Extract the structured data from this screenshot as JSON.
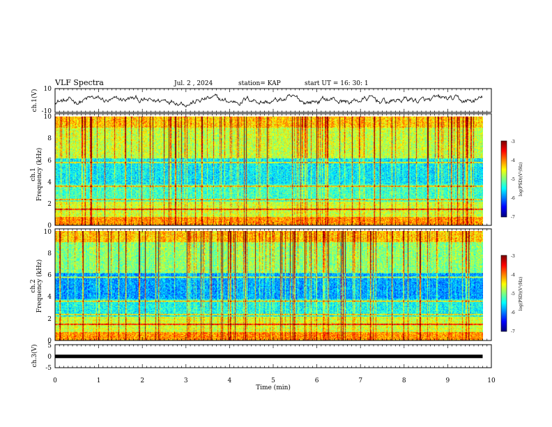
{
  "header": {
    "title": "VLF Spectra",
    "date": "Jul. 2 , 2024",
    "station": "station= KAP",
    "start_time": "start UT = 16: 30: 1"
  },
  "chart_data": [
    {
      "type": "line",
      "panel": "ch1-waveform",
      "ylabel": "ch.1(V)",
      "ylim": [
        -10,
        10
      ],
      "yticks": [
        "10",
        "-10"
      ],
      "xlim": [
        0,
        10
      ],
      "data_extent_min": 9.8,
      "color": "#000000"
    },
    {
      "type": "heatmap",
      "panel": "ch1-spectrogram",
      "ylabel": "ch.1\nFrequency (kHz)",
      "ylim": [
        0,
        10
      ],
      "yticks": [
        "0",
        "2",
        "4",
        "6",
        "8",
        "10"
      ],
      "xlim": [
        0,
        10
      ],
      "data_extent_min": 9.8,
      "colorbar": {
        "label": "log(PSD)(V²/Hz)",
        "range": [
          -7,
          -3
        ],
        "ticks": [
          "-3",
          "-4",
          "-5",
          "-6",
          "-7"
        ]
      }
    },
    {
      "type": "heatmap",
      "panel": "ch2-spectrogram",
      "ylabel": "ch.2\nFrequency (kHz)",
      "ylim": [
        0,
        10
      ],
      "yticks": [
        "0",
        "2",
        "4",
        "6",
        "8",
        "10"
      ],
      "xlim": [
        0,
        10
      ],
      "data_extent_min": 9.8,
      "colorbar": {
        "label": "log(PSD)(V²/Hz)",
        "range": [
          -7,
          -3
        ],
        "ticks": [
          "-3",
          "-4",
          "-5",
          "-6",
          "-7"
        ]
      }
    },
    {
      "type": "line",
      "panel": "ch3-waveform",
      "ylabel": "ch.3(V)",
      "ylim": [
        -5,
        5
      ],
      "yticks": [
        "5",
        "0",
        "-5"
      ],
      "xlim": [
        0,
        10
      ],
      "data_extent_min": 9.8,
      "constant_value": -0.1,
      "color": "#000000"
    }
  ],
  "xaxis": {
    "label": "Time (min)",
    "ticks": [
      "0",
      "1",
      "2",
      "3",
      "4",
      "5",
      "6",
      "7",
      "8",
      "9",
      "10"
    ]
  }
}
